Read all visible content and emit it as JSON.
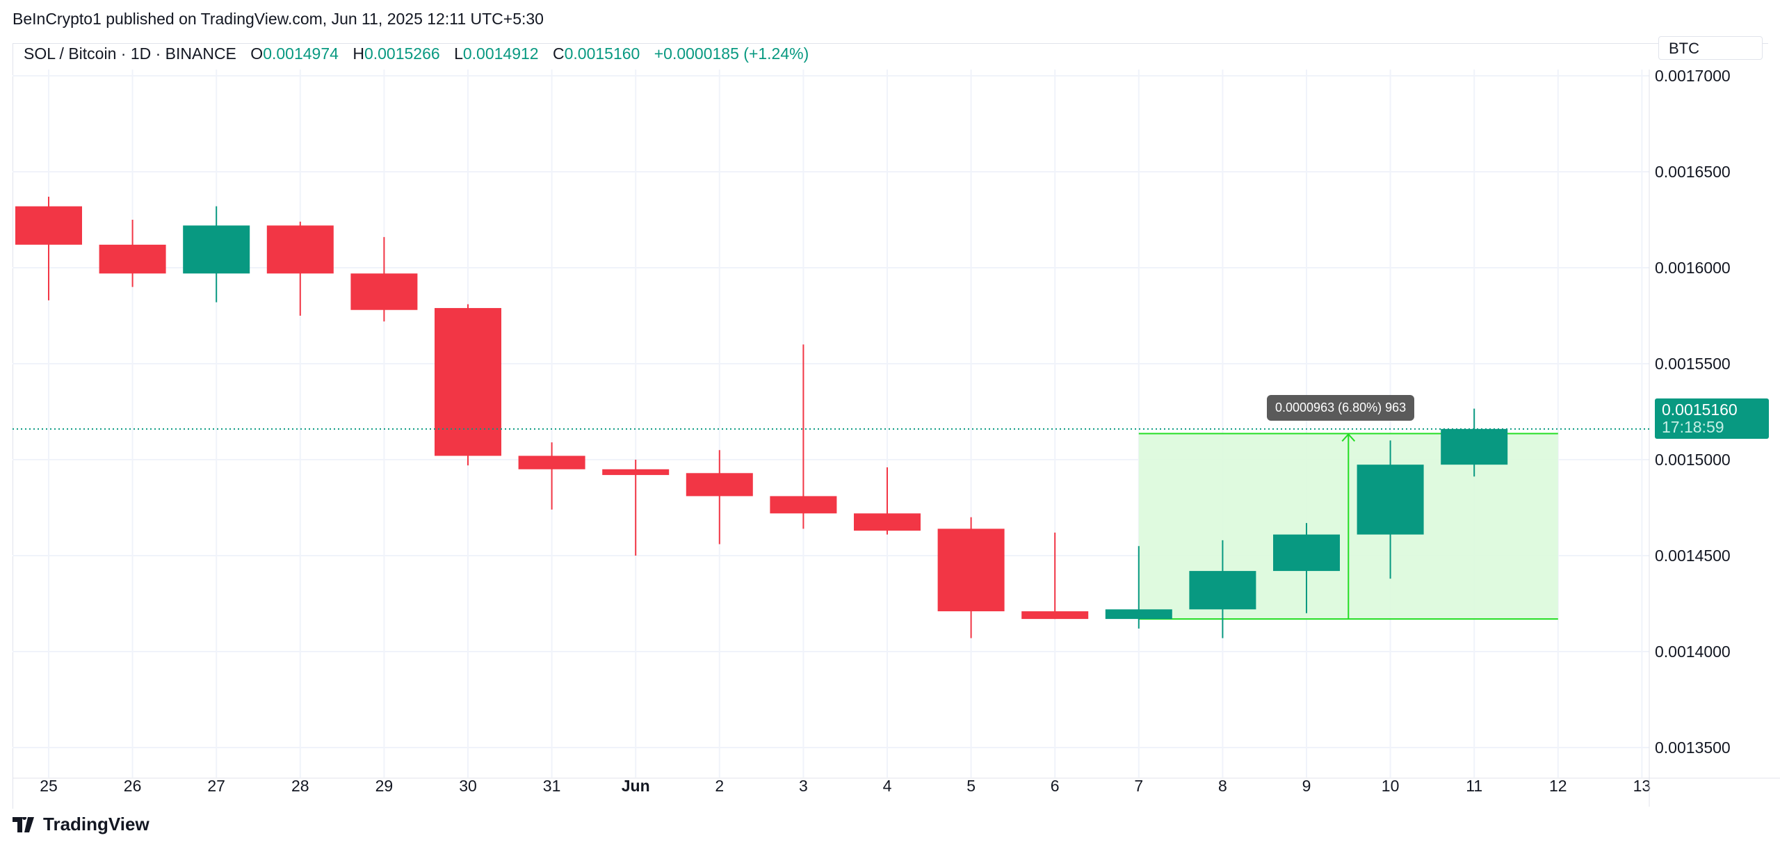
{
  "header": {
    "published": "BeInCrypto1 published on TradingView.com, Jun 11, 2025 12:11 UTC+5:30"
  },
  "legend": {
    "symbol": "SOL / Bitcoin · 1D · BINANCE",
    "o_label": "O",
    "o": "0.0014974",
    "h_label": "H",
    "h": "0.0015266",
    "l_label": "L",
    "l": "0.0014912",
    "c_label": "C",
    "c": "0.0015160",
    "change": "+0.0000185 (+1.24%)"
  },
  "currency": "BTC",
  "last_price": {
    "price": "0.0015160",
    "countdown": "17:18:59"
  },
  "measure_tooltip": "0.0000963 (6.80%) 963",
  "logo": "TradingView",
  "colors": {
    "up": "#089981",
    "down": "#F23645",
    "range_fill": "#dcfadc",
    "range_line": "#22dd22"
  },
  "chart_data": {
    "type": "candlestick",
    "x_ticks": [
      "25",
      "26",
      "27",
      "28",
      "29",
      "30",
      "31",
      "Jun",
      "2",
      "3",
      "4",
      "5",
      "6",
      "7",
      "8",
      "9",
      "10",
      "11",
      "12",
      "13"
    ],
    "y_ticks": [
      "0.0013500",
      "0.0014000",
      "0.0014500",
      "0.0015000",
      "0.0015500",
      "0.0016000",
      "0.0016500",
      "0.0017000"
    ],
    "ylim": [
      0.00133,
      0.00171
    ],
    "candles": [
      {
        "date": "25",
        "o": 0.001632,
        "h": 0.001637,
        "l": 0.001583,
        "c": 0.001612
      },
      {
        "date": "26",
        "o": 0.001612,
        "h": 0.001625,
        "l": 0.00159,
        "c": 0.001597
      },
      {
        "date": "27",
        "o": 0.001597,
        "h": 0.001632,
        "l": 0.001582,
        "c": 0.001622
      },
      {
        "date": "28",
        "o": 0.001622,
        "h": 0.001624,
        "l": 0.001575,
        "c": 0.001597
      },
      {
        "date": "29",
        "o": 0.001597,
        "h": 0.001616,
        "l": 0.001572,
        "c": 0.001578
      },
      {
        "date": "30",
        "o": 0.001579,
        "h": 0.001581,
        "l": 0.001497,
        "c": 0.001502
      },
      {
        "date": "31",
        "o": 0.001502,
        "h": 0.001509,
        "l": 0.001474,
        "c": 0.001495
      },
      {
        "date": "Jun 1",
        "o": 0.001495,
        "h": 0.0015,
        "l": 0.00145,
        "c": 0.001492
      },
      {
        "date": "2",
        "o": 0.001493,
        "h": 0.001505,
        "l": 0.001456,
        "c": 0.001481
      },
      {
        "date": "3",
        "o": 0.001481,
        "h": 0.00156,
        "l": 0.001464,
        "c": 0.001472
      },
      {
        "date": "4",
        "o": 0.001472,
        "h": 0.001496,
        "l": 0.001461,
        "c": 0.001463
      },
      {
        "date": "5",
        "o": 0.001464,
        "h": 0.00147,
        "l": 0.001407,
        "c": 0.001421
      },
      {
        "date": "6",
        "o": 0.001421,
        "h": 0.001462,
        "l": 0.001417,
        "c": 0.001417
      },
      {
        "date": "7",
        "o": 0.001417,
        "h": 0.001455,
        "l": 0.001412,
        "c": 0.001422
      },
      {
        "date": "8",
        "o": 0.001422,
        "h": 0.001458,
        "l": 0.001407,
        "c": 0.001442
      },
      {
        "date": "9",
        "o": 0.001442,
        "h": 0.001467,
        "l": 0.00142,
        "c": 0.001461
      },
      {
        "date": "10",
        "o": 0.001461,
        "h": 0.00151,
        "l": 0.001438,
        "c": 0.0014974
      },
      {
        "date": "11",
        "o": 0.0014974,
        "h": 0.0015266,
        "l": 0.0014912,
        "c": 0.001516
      }
    ],
    "last_price_line": 0.001516,
    "range_measure": {
      "from_date": "7",
      "to_date": "12",
      "low": 0.001417,
      "high": 0.0015136
    }
  }
}
